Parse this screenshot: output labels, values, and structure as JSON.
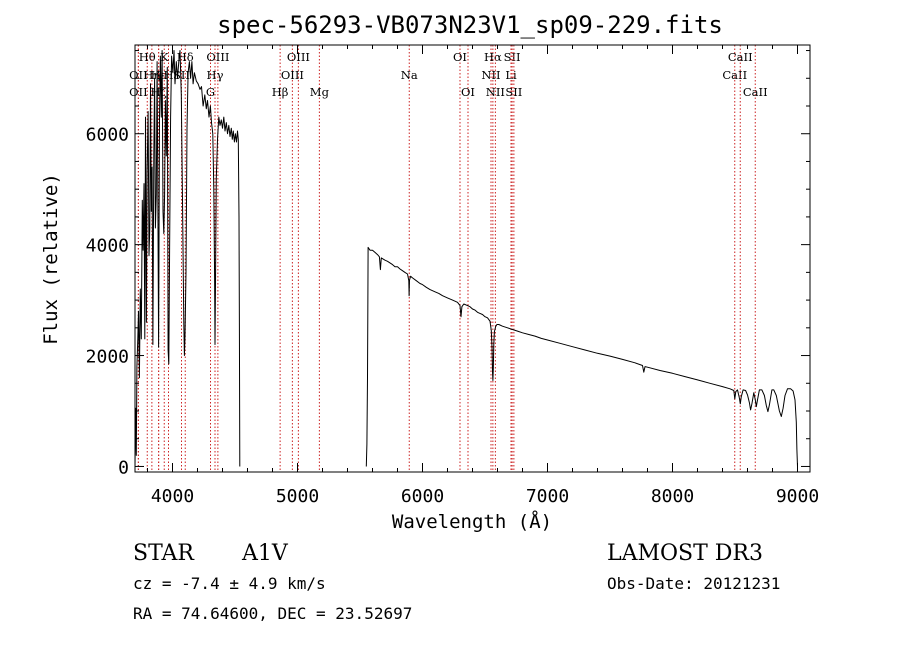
{
  "chart_data": {
    "type": "line",
    "title": "spec-56293-VB073N23V1_sp09-229.fits",
    "xlabel": "Wavelength (Å)",
    "ylabel": "Flux (relative)",
    "xlim": [
      3700,
      9100
    ],
    "ylim": [
      -100,
      7600
    ],
    "xticks": [
      4000,
      5000,
      6000,
      7000,
      8000,
      9000
    ],
    "yticks": [
      0,
      2000,
      4000,
      6000
    ],
    "series": [
      {
        "name": "flux",
        "segments": [
          [
            [
              3700,
              0
            ],
            [
              3705,
              1050
            ],
            [
              3710,
              200
            ],
            [
              3715,
              1800
            ],
            [
              3722,
              2300
            ],
            [
              3728,
              2800
            ],
            [
              3735,
              1600
            ],
            [
              3742,
              3200
            ],
            [
              3750,
              2300
            ],
            [
              3758,
              4800
            ],
            [
              3765,
              3900
            ],
            [
              3772,
              5100
            ],
            [
              3778,
              2300
            ],
            [
              3784,
              6300
            ],
            [
              3791,
              2600
            ],
            [
              3797,
              5300
            ],
            [
              3805,
              6400
            ],
            [
              3812,
              3800
            ],
            [
              3818,
              4300
            ],
            [
              3824,
              6900
            ],
            [
              3830,
              4600
            ],
            [
              3837,
              5400
            ],
            [
              3843,
              2200
            ],
            [
              3850,
              5600
            ],
            [
              3857,
              7000
            ],
            [
              3863,
              4300
            ],
            [
              3870,
              4900
            ],
            [
              3877,
              7300
            ],
            [
              3883,
              4700
            ],
            [
              3889,
              2150
            ],
            [
              3896,
              6300
            ],
            [
              3903,
              7400
            ],
            [
              3910,
              6300
            ],
            [
              3917,
              7500
            ],
            [
              3924,
              4600
            ],
            [
              3930,
              4200
            ],
            [
              3937,
              4900
            ],
            [
              3943,
              6600
            ],
            [
              3950,
              5600
            ],
            [
              3958,
              7200
            ],
            [
              3965,
              2100
            ],
            [
              3970,
              1850
            ],
            [
              3977,
              3900
            ],
            [
              3985,
              6300
            ],
            [
              3993,
              7400
            ],
            [
              4003,
              7100
            ],
            [
              4012,
              7500
            ],
            [
              4020,
              6900
            ],
            [
              4030,
              7300
            ],
            [
              4040,
              7000
            ],
            [
              4050,
              7300
            ],
            [
              4060,
              7500
            ],
            [
              4070,
              6700
            ],
            [
              4080,
              4800
            ],
            [
              4090,
              2600
            ],
            [
              4095,
              2000
            ],
            [
              4100,
              2350
            ],
            [
              4108,
              3500
            ],
            [
              4116,
              6100
            ],
            [
              4125,
              7100
            ],
            [
              4135,
              7300
            ],
            [
              4145,
              7000
            ],
            [
              4155,
              7300
            ],
            [
              4165,
              6900
            ],
            [
              4175,
              7100
            ],
            [
              4190,
              6950
            ],
            [
              4205,
              6900
            ],
            [
              4220,
              6800
            ],
            [
              4232,
              6850
            ],
            [
              4245,
              6500
            ],
            [
              4258,
              6700
            ],
            [
              4270,
              6450
            ],
            [
              4280,
              6600
            ],
            [
              4292,
              6300
            ],
            [
              4303,
              6500
            ],
            [
              4312,
              6200
            ],
            [
              4322,
              6000
            ],
            [
              4330,
              5000
            ],
            [
              4337,
              3400
            ],
            [
              4340,
              2200
            ],
            [
              4344,
              3300
            ],
            [
              4350,
              5200
            ],
            [
              4360,
              5900
            ],
            [
              4370,
              6300
            ],
            [
              4380,
              6150
            ],
            [
              4390,
              6250
            ],
            [
              4400,
              6100
            ],
            [
              4410,
              6300
            ],
            [
              4420,
              6050
            ],
            [
              4430,
              6200
            ],
            [
              4440,
              6000
            ],
            [
              4450,
              6150
            ],
            [
              4460,
              5950
            ],
            [
              4470,
              6100
            ],
            [
              4478,
              5900
            ],
            [
              4486,
              6050
            ],
            [
              4495,
              5850
            ],
            [
              4503,
              6000
            ],
            [
              4512,
              5850
            ],
            [
              4520,
              6050
            ],
            [
              4526,
              5900
            ],
            [
              4532,
              4500
            ],
            [
              4535,
              2500
            ],
            [
              4538,
              0
            ]
          ],
          [
            [
              5550,
              0
            ],
            [
              5555,
              400
            ],
            [
              5560,
              1600
            ],
            [
              5562,
              2700
            ],
            [
              5565,
              3950
            ],
            [
              5580,
              3900
            ],
            [
              5600,
              3900
            ],
            [
              5620,
              3860
            ],
            [
              5640,
              3820
            ],
            [
              5655,
              3780
            ],
            [
              5663,
              3550
            ],
            [
              5670,
              3760
            ],
            [
              5700,
              3720
            ],
            [
              5720,
              3700
            ],
            [
              5740,
              3670
            ],
            [
              5760,
              3640
            ],
            [
              5780,
              3600
            ],
            [
              5800,
              3600
            ],
            [
              5820,
              3560
            ],
            [
              5840,
              3530
            ],
            [
              5860,
              3500
            ],
            [
              5880,
              3470
            ],
            [
              5890,
              3350
            ],
            [
              5893,
              3080
            ],
            [
              5896,
              3360
            ],
            [
              5905,
              3430
            ],
            [
              5920,
              3400
            ],
            [
              5950,
              3350
            ],
            [
              5980,
              3300
            ],
            [
              6000,
              3280
            ],
            [
              6030,
              3230
            ],
            [
              6060,
              3190
            ],
            [
              6100,
              3150
            ],
            [
              6130,
              3120
            ],
            [
              6160,
              3080
            ],
            [
              6200,
              3040
            ],
            [
              6240,
              3000
            ],
            [
              6280,
              2960
            ],
            [
              6300,
              2900
            ],
            [
              6308,
              2700
            ],
            [
              6315,
              2880
            ],
            [
              6330,
              2930
            ],
            [
              6360,
              2900
            ],
            [
              6380,
              2880
            ],
            [
              6400,
              2840
            ],
            [
              6420,
              2820
            ],
            [
              6440,
              2780
            ],
            [
              6460,
              2760
            ],
            [
              6480,
              2740
            ],
            [
              6500,
              2700
            ],
            [
              6520,
              2680
            ],
            [
              6540,
              2620
            ],
            [
              6550,
              2450
            ],
            [
              6556,
              2150
            ],
            [
              6560,
              1700
            ],
            [
              6563,
              1550
            ],
            [
              6566,
              1750
            ],
            [
              6570,
              2200
            ],
            [
              6575,
              2430
            ],
            [
              6585,
              2520
            ],
            [
              6595,
              2560
            ],
            [
              6610,
              2560
            ],
            [
              6640,
              2530
            ],
            [
              6680,
              2500
            ],
            [
              6720,
              2470
            ],
            [
              6760,
              2440
            ],
            [
              6800,
              2410
            ],
            [
              6850,
              2380
            ],
            [
              6900,
              2350
            ],
            [
              6950,
              2310
            ],
            [
              7000,
              2280
            ],
            [
              7100,
              2220
            ],
            [
              7200,
              2160
            ],
            [
              7300,
              2100
            ],
            [
              7400,
              2040
            ],
            [
              7500,
              1990
            ],
            [
              7600,
              1930
            ],
            [
              7700,
              1870
            ],
            [
              7760,
              1820
            ],
            [
              7770,
              1700
            ],
            [
              7780,
              1800
            ],
            [
              7800,
              1790
            ],
            [
              7900,
              1730
            ],
            [
              8000,
              1680
            ],
            [
              8100,
              1620
            ],
            [
              8200,
              1560
            ],
            [
              8300,
              1500
            ],
            [
              8400,
              1440
            ],
            [
              8460,
              1400
            ],
            [
              8490,
              1370
            ],
            [
              8498,
              1220
            ],
            [
              8506,
              1350
            ],
            [
              8520,
              1380
            ],
            [
              8534,
              1240
            ],
            [
              8542,
              1130
            ],
            [
              8550,
              1260
            ],
            [
              8565,
              1380
            ],
            [
              8585,
              1370
            ],
            [
              8600,
              1290
            ],
            [
              8615,
              1150
            ],
            [
              8625,
              1020
            ],
            [
              8635,
              1130
            ],
            [
              8650,
              1330
            ],
            [
              8662,
              1200
            ],
            [
              8670,
              1080
            ],
            [
              8680,
              1200
            ],
            [
              8695,
              1380
            ],
            [
              8715,
              1380
            ],
            [
              8735,
              1280
            ],
            [
              8750,
              1100
            ],
            [
              8763,
              990
            ],
            [
              8775,
              1110
            ],
            [
              8795,
              1380
            ],
            [
              8810,
              1380
            ],
            [
              8830,
              1280
            ],
            [
              8855,
              1000
            ],
            [
              8870,
              900
            ],
            [
              8885,
              1050
            ],
            [
              8900,
              1280
            ],
            [
              8920,
              1400
            ],
            [
              8945,
              1400
            ],
            [
              8965,
              1360
            ],
            [
              8980,
              1200
            ],
            [
              8990,
              800
            ],
            [
              8995,
              300
            ],
            [
              9000,
              0
            ]
          ]
        ]
      }
    ],
    "line_markers": [
      {
        "label": "Hθ",
        "wavelength": 3798,
        "row": 0
      },
      {
        "label": "OII",
        "wavelength": 3727,
        "row": 1
      },
      {
        "label": "OII",
        "wavelength": 3727,
        "row": 2
      },
      {
        "label": "Hη",
        "wavelength": 3835,
        "row": 1
      },
      {
        "label": "Hε",
        "wavelength": 3889,
        "row": 1
      },
      {
        "label": "Hζ",
        "wavelength": 3889,
        "row": 2
      },
      {
        "label": "K",
        "wavelength": 3934,
        "row": 0
      },
      {
        "label": "H",
        "wavelength": 3968,
        "row": 1
      },
      {
        "label": "SII",
        "wavelength": 4072,
        "row": 1
      },
      {
        "label": "Hδ",
        "wavelength": 4102,
        "row": 0
      },
      {
        "label": "OIII",
        "wavelength": 4363,
        "row": 0
      },
      {
        "label": "Hγ",
        "wavelength": 4340,
        "row": 1
      },
      {
        "label": "G",
        "wavelength": 4304,
        "row": 2
      },
      {
        "label": "Hβ",
        "wavelength": 4861,
        "row": 2
      },
      {
        "label": "OIII",
        "wavelength": 4959,
        "row": 1
      },
      {
        "label": "OIII",
        "wavelength": 5007,
        "row": 0
      },
      {
        "label": "Mg",
        "wavelength": 5175,
        "row": 2
      },
      {
        "label": "Na",
        "wavelength": 5894,
        "row": 1
      },
      {
        "label": "OI",
        "wavelength": 6300,
        "row": 0
      },
      {
        "label": "OI",
        "wavelength": 6364,
        "row": 2
      },
      {
        "label": "NII",
        "wavelength": 6548,
        "row": 1
      },
      {
        "label": "Hα",
        "wavelength": 6563,
        "row": 0
      },
      {
        "label": "NII",
        "wavelength": 6583,
        "row": 2
      },
      {
        "label": "Li",
        "wavelength": 6708,
        "row": 1
      },
      {
        "label": "SII",
        "wavelength": 6717,
        "row": 0
      },
      {
        "label": "SII",
        "wavelength": 6731,
        "row": 2
      },
      {
        "label": "CaII",
        "wavelength": 8498,
        "row": 1
      },
      {
        "label": "CaII",
        "wavelength": 8542,
        "row": 0
      },
      {
        "label": "CaII",
        "wavelength": 8662,
        "row": 2
      }
    ]
  },
  "info": {
    "object_class": "STAR",
    "subclass": "A1V",
    "redshift": "cz = -7.4 ± 4.9 km/s",
    "coords": "RA =  74.64600, DEC =  23.52697",
    "survey": "LAMOST DR3",
    "obs_date": "Obs-Date: 20121231"
  },
  "colors": {
    "line": "#000000",
    "marker": "#cc2222"
  }
}
